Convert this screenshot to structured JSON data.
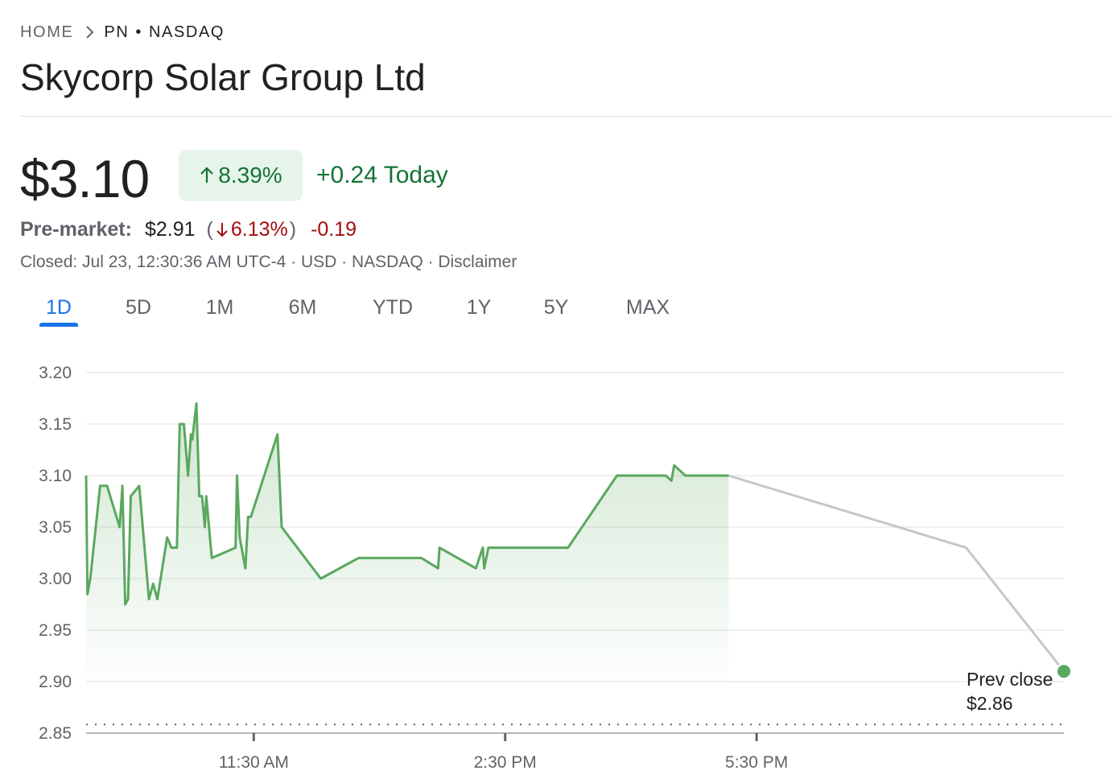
{
  "breadcrumb": {
    "home": "HOME",
    "ticker": "PN",
    "separator": "•",
    "exchange": "NASDAQ"
  },
  "title": "Skycorp Solar Group Ltd",
  "quote": {
    "price": "$3.10",
    "change_percent": "8.39%",
    "change_today": "+0.24 Today"
  },
  "premarket": {
    "label": "Pre-market:",
    "price": "$2.91",
    "paren_open": "(",
    "change_percent": "6.13%",
    "paren_close": ")",
    "change": "-0.19"
  },
  "status_line": "Closed: Jul 23, 12:30:36 AM UTC-4 · USD · NASDAQ · Disclaimer",
  "tabs": [
    {
      "label": "1D",
      "active": true
    },
    {
      "label": "5D",
      "active": false
    },
    {
      "label": "1M",
      "active": false
    },
    {
      "label": "6M",
      "active": false
    },
    {
      "label": "YTD",
      "active": false
    },
    {
      "label": "1Y",
      "active": false
    },
    {
      "label": "5Y",
      "active": false
    },
    {
      "label": "MAX",
      "active": false
    }
  ],
  "colors": {
    "up": "#137333",
    "up_bg": "#e6f4ea",
    "down": "#a50e0e",
    "line": "#5aa85f",
    "afterhours_line": "#c4c7cc",
    "accent": "#1a73e8"
  },
  "icons": {
    "breadcrumb_separator": "chevron-right-icon",
    "up": "arrow-up-icon",
    "down": "arrow-down-icon"
  },
  "chart_data": {
    "type": "line",
    "x_ticks": [
      "11:30 AM",
      "2:30 PM",
      "5:30 PM"
    ],
    "y_ticks": [
      "3.20",
      "3.15",
      "3.10",
      "3.05",
      "3.00",
      "2.95",
      "2.90",
      "2.85"
    ],
    "ylim": [
      2.85,
      3.2
    ],
    "grid": true,
    "prev_close_label": "Prev close",
    "prev_close_value": "$2.86",
    "prev_close": 2.86,
    "series": [
      {
        "session": "regular",
        "points": [
          [
            "9:30",
            3.1
          ],
          [
            "9:31",
            2.985
          ],
          [
            "9:33",
            3.0
          ],
          [
            "9:40",
            3.09
          ],
          [
            "9:45",
            3.09
          ],
          [
            "9:54",
            3.05
          ],
          [
            "9:56",
            3.09
          ],
          [
            "9:58",
            2.975
          ],
          [
            "10:00",
            2.98
          ],
          [
            "10:02",
            3.08
          ],
          [
            "10:08",
            3.09
          ],
          [
            "10:15",
            2.98
          ],
          [
            "10:18",
            2.995
          ],
          [
            "10:21",
            2.98
          ],
          [
            "10:28",
            3.04
          ],
          [
            "10:31",
            3.03
          ],
          [
            "10:35",
            3.03
          ],
          [
            "10:37",
            3.15
          ],
          [
            "10:40",
            3.15
          ],
          [
            "10:43",
            3.1
          ],
          [
            "10:45",
            3.14
          ],
          [
            "10:46",
            3.135
          ],
          [
            "10:49",
            3.17
          ],
          [
            "10:51",
            3.08
          ],
          [
            "10:53",
            3.08
          ],
          [
            "10:55",
            3.05
          ],
          [
            "10:56",
            3.08
          ],
          [
            "10:58",
            3.05
          ],
          [
            "11:00",
            3.02
          ],
          [
            "11:17",
            3.03
          ],
          [
            "11:18",
            3.1
          ],
          [
            "11:20",
            3.04
          ],
          [
            "11:24",
            3.01
          ],
          [
            "11:26",
            3.06
          ],
          [
            "11:28",
            3.06
          ],
          [
            "11:47",
            3.14
          ],
          [
            "11:50",
            3.05
          ],
          [
            "12:18",
            3.0
          ],
          [
            "12:45",
            3.02
          ],
          [
            "13:30",
            3.02
          ],
          [
            "13:42",
            3.01
          ],
          [
            "13:43",
            3.03
          ],
          [
            "14:09",
            3.01
          ],
          [
            "14:14",
            3.03
          ],
          [
            "14:15",
            3.01
          ],
          [
            "14:18",
            3.03
          ],
          [
            "15:15",
            3.03
          ],
          [
            "15:50",
            3.1
          ],
          [
            "16:25",
            3.1
          ],
          [
            "16:29",
            3.095
          ],
          [
            "16:31",
            3.11
          ],
          [
            "16:39",
            3.1
          ],
          [
            "17:10",
            3.1
          ]
        ]
      },
      {
        "session": "after-hours",
        "points": [
          [
            "17:10",
            3.1
          ],
          [
            "20:00",
            3.03
          ],
          [
            "21:10",
            2.91
          ]
        ]
      }
    ]
  }
}
